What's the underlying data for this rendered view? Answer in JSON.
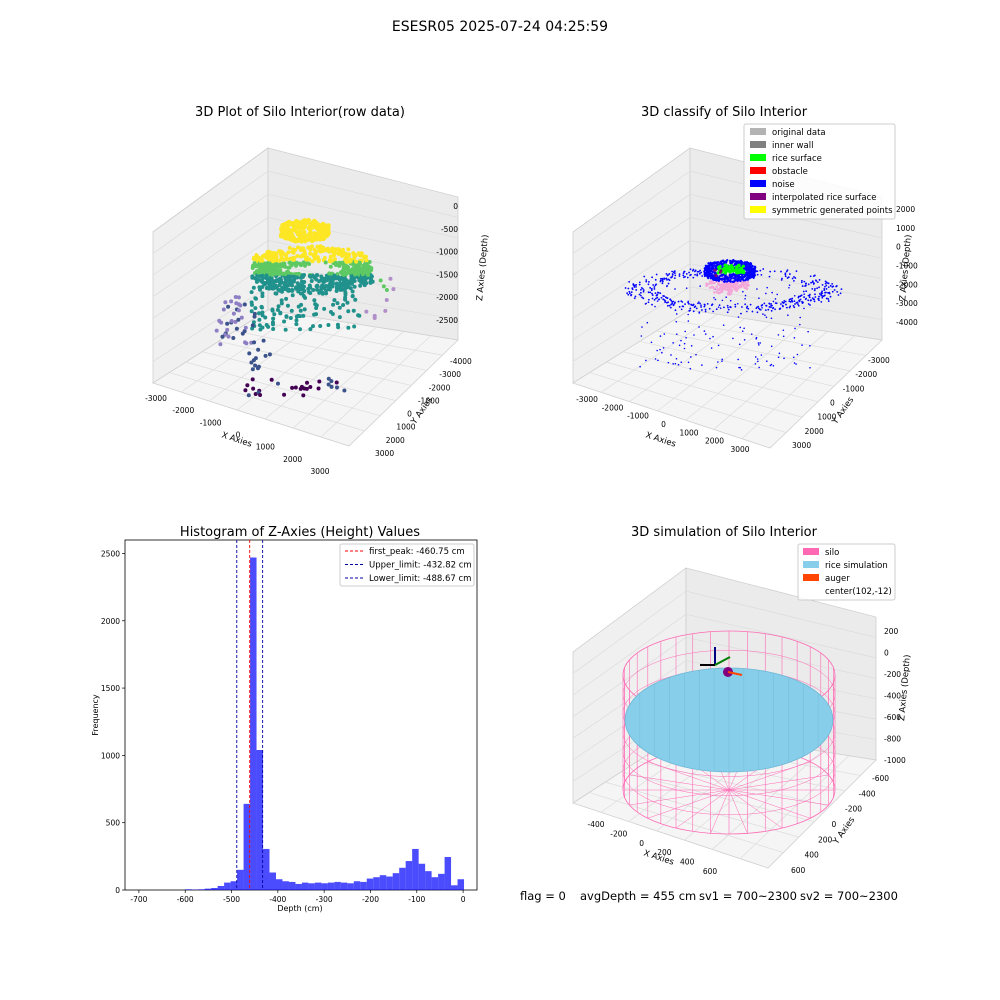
{
  "suptitle": "ESESR05 2025-07-24 04:25:59",
  "footer": {
    "flag": "flag = 0",
    "avg_depth": "avgDepth = 455 cm",
    "sv1": "sv1 = 700~2300",
    "sv2": "sv2 = 700~2300"
  },
  "chart_data": [
    {
      "type": "scatter",
      "title": "3D Plot of Silo Interior(row data)",
      "xlabel": "X Axies",
      "ylabel": "Y Axies",
      "zlabel": "Z Axies (Depth)",
      "x_ticks": [
        "-3000",
        "-2000",
        "-1000",
        "0",
        "1000",
        "2000",
        "3000"
      ],
      "y_ticks": [
        "-4000",
        "-3000",
        "-2000",
        "-1000",
        "0",
        "1000",
        "2000",
        "3000"
      ],
      "z_ticks": [
        "0",
        "-500",
        "-1000",
        "-1500",
        "-2000",
        "-2500"
      ],
      "colormap": [
        "#440154",
        "#3b528b",
        "#21918c",
        "#5ec962",
        "#fde725"
      ]
    },
    {
      "type": "scatter",
      "title": "3D classify of Silo Interior",
      "xlabel": "X Axies",
      "ylabel": "Y Axies",
      "zlabel": "Z Axies (Depth)",
      "x_ticks": [
        "-3000",
        "-2000",
        "-1000",
        "0",
        "1000",
        "2000",
        "3000"
      ],
      "y_ticks": [
        "-3000",
        "-2000",
        "-1000",
        "0",
        "1000",
        "2000",
        "3000"
      ],
      "z_ticks": [
        "2000",
        "1000",
        "0",
        "-1000",
        "-2000",
        "-3000",
        "-4000"
      ],
      "legend": [
        {
          "label": "original data",
          "color": "#b3b3b3"
        },
        {
          "label": "inner wall",
          "color": "#808080"
        },
        {
          "label": "rice surface",
          "color": "#00ff00"
        },
        {
          "label": "obstacle",
          "color": "#ff0000"
        },
        {
          "label": "noise",
          "color": "#0000ff"
        },
        {
          "label": "interpolated rice surface",
          "color": "#800080"
        },
        {
          "label": "symmetric generated points",
          "color": "#ffff00"
        }
      ]
    },
    {
      "type": "bar",
      "title": "Histogram of Z-Axies (Height) Values",
      "xlabel": "Depth (cm)",
      "ylabel": "Frequency",
      "xlim": [
        -730,
        30
      ],
      "ylim": [
        0,
        2600
      ],
      "x_ticks": [
        -700,
        -600,
        -500,
        -400,
        -300,
        -200,
        -100,
        0
      ],
      "y_ticks": [
        0,
        500,
        1000,
        1500,
        2000,
        2500
      ],
      "bin_width": 14,
      "bar_color": "#0000ff",
      "bins": [
        {
          "x": -600,
          "y": 5
        },
        {
          "x": -586,
          "y": 3
        },
        {
          "x": -572,
          "y": 5
        },
        {
          "x": -558,
          "y": 10
        },
        {
          "x": -544,
          "y": 15
        },
        {
          "x": -530,
          "y": 30
        },
        {
          "x": -516,
          "y": 55
        },
        {
          "x": -502,
          "y": 65
        },
        {
          "x": -488,
          "y": 150
        },
        {
          "x": -474,
          "y": 640
        },
        {
          "x": -460,
          "y": 2470
        },
        {
          "x": -446,
          "y": 1040
        },
        {
          "x": -432,
          "y": 305
        },
        {
          "x": -418,
          "y": 130
        },
        {
          "x": -404,
          "y": 80
        },
        {
          "x": -390,
          "y": 65
        },
        {
          "x": -376,
          "y": 60
        },
        {
          "x": -362,
          "y": 45
        },
        {
          "x": -348,
          "y": 55
        },
        {
          "x": -334,
          "y": 50
        },
        {
          "x": -320,
          "y": 55
        },
        {
          "x": -306,
          "y": 50
        },
        {
          "x": -292,
          "y": 55
        },
        {
          "x": -278,
          "y": 60
        },
        {
          "x": -264,
          "y": 55
        },
        {
          "x": -250,
          "y": 50
        },
        {
          "x": -236,
          "y": 65
        },
        {
          "x": -222,
          "y": 60
        },
        {
          "x": -208,
          "y": 85
        },
        {
          "x": -194,
          "y": 95
        },
        {
          "x": -180,
          "y": 110
        },
        {
          "x": -166,
          "y": 100
        },
        {
          "x": -152,
          "y": 125
        },
        {
          "x": -138,
          "y": 165
        },
        {
          "x": -124,
          "y": 215
        },
        {
          "x": -110,
          "y": 305
        },
        {
          "x": -96,
          "y": 195
        },
        {
          "x": -82,
          "y": 140
        },
        {
          "x": -68,
          "y": 95
        },
        {
          "x": -54,
          "y": 120
        },
        {
          "x": -40,
          "y": 245
        },
        {
          "x": -26,
          "y": 35
        },
        {
          "x": -12,
          "y": 80
        }
      ],
      "vlines": [
        {
          "x": -460.75,
          "label": "first_peak: -460.75 cm",
          "color": "#ff0000"
        },
        {
          "x": -432.82,
          "label": "Upper_limit: -432.82 cm",
          "color": "#0000a0"
        },
        {
          "x": -488.67,
          "label": "Lower_limit: -488.67 cm",
          "color": "#0000a0"
        }
      ]
    },
    {
      "type": "area",
      "title": "3D simulation of Silo Interior",
      "xlabel": "X Axies",
      "ylabel": "Y Axies",
      "zlabel": "Z Axies (Depth)",
      "x_ticks": [
        "-400",
        "-200",
        "0",
        "200",
        "400",
        "600"
      ],
      "y_ticks": [
        "-600",
        "-400",
        "-200",
        "0",
        "200",
        "400",
        "600"
      ],
      "z_ticks": [
        "200",
        "0",
        "-200",
        "-400",
        "-600",
        "-800",
        "-1000"
      ],
      "legend": [
        {
          "label": "silo",
          "color": "#ff69b4"
        },
        {
          "label": "rice simulation",
          "color": "#87ceeb"
        },
        {
          "label": "auger",
          "color": "#ff4500"
        },
        {
          "label": "center(102,-12)",
          "color": ""
        }
      ]
    }
  ]
}
